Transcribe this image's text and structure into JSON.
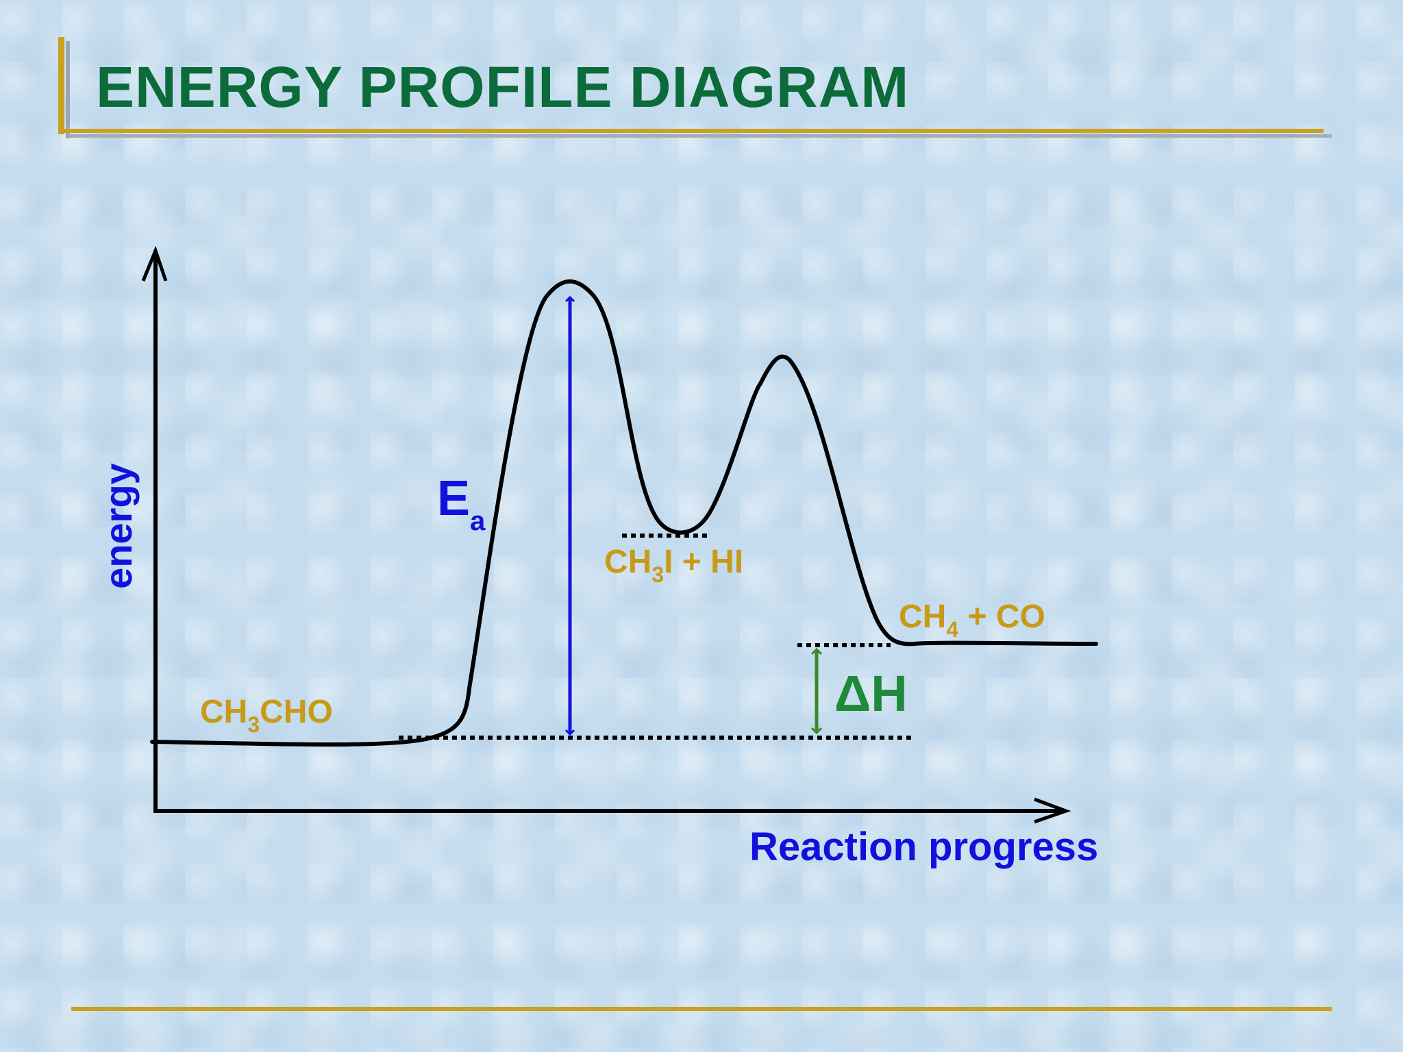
{
  "title": "ENERGY PROFILE DIAGRAM",
  "axes": {
    "y_label": "energy",
    "x_label": "Reaction progress"
  },
  "species": {
    "reactant": {
      "formula": "CH",
      "sub": "3",
      "rest": "CHO"
    },
    "intermediate": {
      "formula": "CH",
      "sub": "3",
      "rest": "I + HI"
    },
    "products": {
      "formula": "CH",
      "sub": "4",
      "rest": " + CO"
    }
  },
  "annotations": {
    "activation_energy": {
      "symbol": "E",
      "sub": "a"
    },
    "enthalpy_change": {
      "symbol": "ΔH"
    }
  },
  "colors": {
    "title": "#0b6b3a",
    "axis_labels": "#1111dd",
    "species": "#c89a18",
    "ea_arrow": "#1111dd",
    "dh_arrow": "#3a8a2a",
    "dh_text": "#1f8a3a",
    "accent_rule": "#c9a11f"
  }
}
